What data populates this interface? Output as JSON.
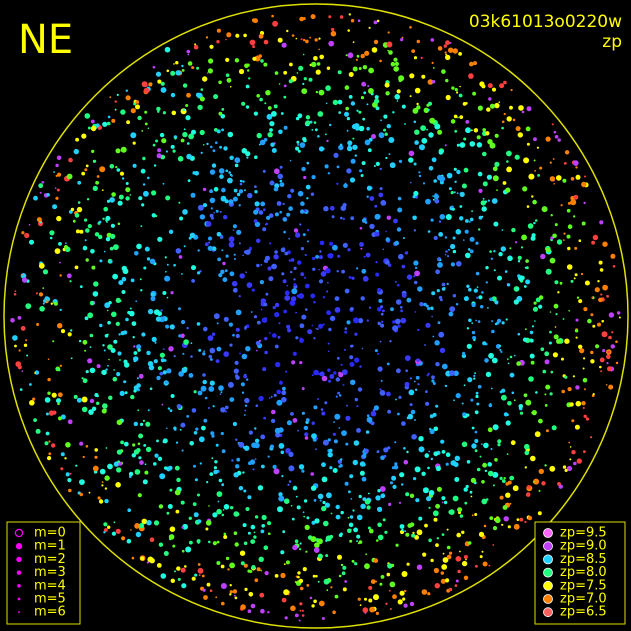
{
  "header": {
    "direction": "NE",
    "frame_id": "03k61013o0220w",
    "mode": "zp"
  },
  "magnitude_legend": {
    "items": [
      "m=0",
      "m=1",
      "m=2",
      "m=3",
      "m=4",
      "m=5",
      "m=6"
    ],
    "color": "#ff00ff"
  },
  "zp_legend": {
    "items": [
      {
        "label": "zp=9.5",
        "color": "#ff66ff"
      },
      {
        "label": "zp=9.0",
        "color": "#c040ff"
      },
      {
        "label": "zp=8.5",
        "color": "#20d0ff"
      },
      {
        "label": "zp=8.0",
        "color": "#20ff80"
      },
      {
        "label": "zp=7.5",
        "color": "#ffff00"
      },
      {
        "label": "zp=7.0",
        "color": "#ff8000"
      },
      {
        "label": "zp=6.5",
        "color": "#ff6060"
      }
    ]
  }
}
